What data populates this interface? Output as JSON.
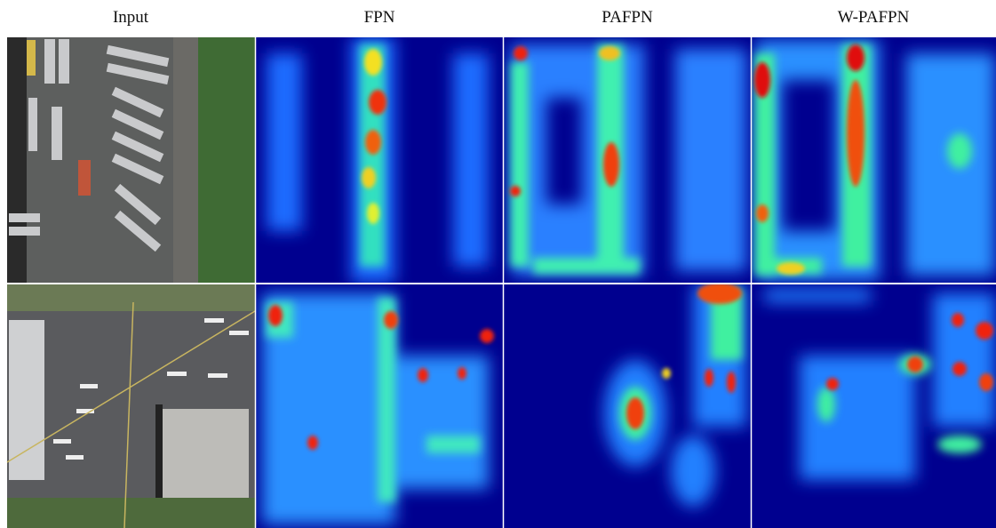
{
  "columns": [
    "Input",
    "FPN",
    "PAFPN",
    "W-PAFPN"
  ]
}
